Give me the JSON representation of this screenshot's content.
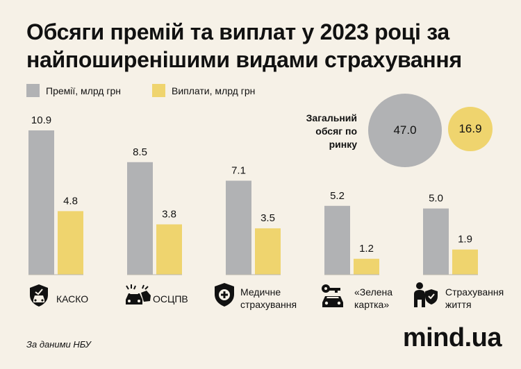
{
  "title": "Обсяги премій та виплат у 2023 році за найпоширенішими видами страхування",
  "colors": {
    "premiums": "#b1b2b4",
    "payouts": "#efd46e",
    "background": "#f6f1e7",
    "text": "#111111"
  },
  "chart_data": {
    "type": "bar",
    "categories": [
      "КАСКО",
      "ОСЦПВ",
      "Медичне страхування",
      "«Зелена картка»",
      "Страхування життя"
    ],
    "category_lines": [
      [
        "КАСКО"
      ],
      [
        "ОСЦПВ"
      ],
      [
        "Медичне",
        "страхування"
      ],
      [
        "«Зелена",
        "картка»"
      ],
      [
        "Страхування",
        "життя"
      ]
    ],
    "category_icons": [
      "car-shield-icon",
      "car-crash-icon",
      "medical-shield-icon",
      "car-key-icon",
      "person-shield-icon"
    ],
    "series": [
      {
        "name": "Премії, млрд грн",
        "values": [
          10.9,
          8.5,
          7.1,
          5.2,
          5.0
        ],
        "labels": [
          "10.9",
          "8.5",
          "7.1",
          "5.2",
          "5.0"
        ]
      },
      {
        "name": "Виплати, млрд грн",
        "values": [
          4.8,
          3.8,
          3.5,
          1.2,
          1.9
        ],
        "labels": [
          "4.8",
          "3.8",
          "3.5",
          "1.2",
          "1.9"
        ]
      }
    ],
    "ylim": [
      0,
      10.9
    ],
    "grid": false,
    "legend": "top-left"
  },
  "totals": {
    "label": "Загальний обсяг по ринку",
    "label_lines": [
      "Загальний",
      "обсяг по",
      "ринку"
    ],
    "premiums": 47.0,
    "premiums_text": "47.0",
    "payouts": 16.9,
    "payouts_text": "16.9"
  },
  "source": "За даними НБУ",
  "brand": "mind.ua"
}
